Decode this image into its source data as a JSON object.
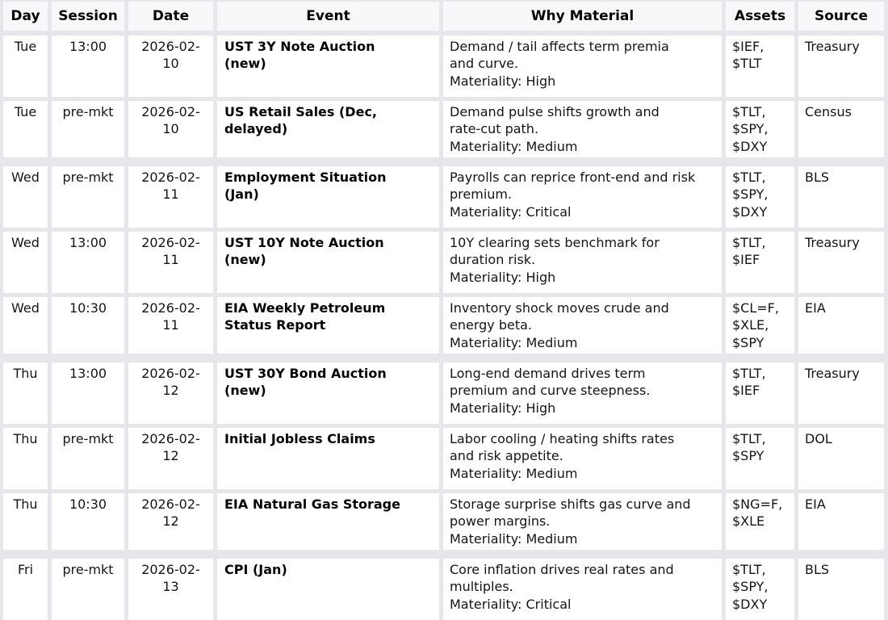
{
  "columns": [
    {
      "key": "day",
      "label": "Day"
    },
    {
      "key": "session",
      "label": "Session"
    },
    {
      "key": "date",
      "label": "Date"
    },
    {
      "key": "event",
      "label": "Event"
    },
    {
      "key": "why",
      "label": "Why Material"
    },
    {
      "key": "assets",
      "label": "Assets"
    },
    {
      "key": "source",
      "label": "Source"
    }
  ],
  "colors": {
    "page_gap": "#e7e7eb",
    "header_cell_bg": "#f8f8fa",
    "body_cell_bg": "#ffffff",
    "text": "#151515"
  },
  "rows": [
    {
      "day": "Tue",
      "session": "13:00",
      "date": "2026-02-10",
      "event": "UST 3Y Note Auction\n(new)",
      "why": "Demand / tail affects term premia\nand curve.",
      "materiality": "Materiality: High",
      "assets": "$IEF,\n$TLT",
      "source": "Treasury"
    },
    {
      "day": "Tue",
      "session": "pre-mkt",
      "date": "2026-02-10",
      "event": "US Retail Sales (Dec,\ndelayed)",
      "why": "Demand pulse shifts growth and\nrate-cut path.",
      "materiality": "Materiality: Medium",
      "assets": "$TLT,\n$SPY,\n$DXY",
      "source": "Census"
    },
    {
      "day": "Wed",
      "session": "pre-mkt",
      "date": "2026-02-11",
      "event": "Employment Situation\n(Jan)",
      "why": "Payrolls can reprice front-end and risk\npremium.",
      "materiality": "Materiality: Critical",
      "assets": "$TLT,\n$SPY,\n$DXY",
      "source": "BLS"
    },
    {
      "day": "Wed",
      "session": "13:00",
      "date": "2026-02-11",
      "event": "UST 10Y Note Auction\n(new)",
      "why": "10Y clearing sets benchmark for\nduration risk.",
      "materiality": "Materiality: High",
      "assets": "$TLT,\n$IEF",
      "source": "Treasury"
    },
    {
      "day": "Wed",
      "session": "10:30",
      "date": "2026-02-11",
      "event": "EIA Weekly Petroleum\nStatus Report",
      "why": "Inventory shock moves crude and\nenergy beta.",
      "materiality": "Materiality: Medium",
      "assets": "$CL=F,\n$XLE,\n$SPY",
      "source": "EIA"
    },
    {
      "day": "Thu",
      "session": "13:00",
      "date": "2026-02-12",
      "event": "UST 30Y Bond Auction\n(new)",
      "why": "Long-end demand drives term\npremium and curve steepness.",
      "materiality": "Materiality: High",
      "assets": "$TLT,\n$IEF",
      "source": "Treasury"
    },
    {
      "day": "Thu",
      "session": "pre-mkt",
      "date": "2026-02-12",
      "event": "Initial Jobless Claims",
      "why": "Labor cooling / heating shifts rates\nand risk appetite.",
      "materiality": "Materiality: Medium",
      "assets": "$TLT,\n$SPY",
      "source": "DOL"
    },
    {
      "day": "Thu",
      "session": "10:30",
      "date": "2026-02-12",
      "event": "EIA Natural Gas Storage",
      "why": "Storage surprise shifts gas curve and\npower margins.",
      "materiality": "Materiality: Medium",
      "assets": "$NG=F,\n$XLE",
      "source": "EIA"
    },
    {
      "day": "Fri",
      "session": "pre-mkt",
      "date": "2026-02-13",
      "event": "CPI (Jan)",
      "why": "Core inflation drives real rates and\nmultiples.",
      "materiality": "Materiality: Critical",
      "assets": "$TLT,\n$SPY,\n$DXY",
      "source": "BLS"
    }
  ]
}
